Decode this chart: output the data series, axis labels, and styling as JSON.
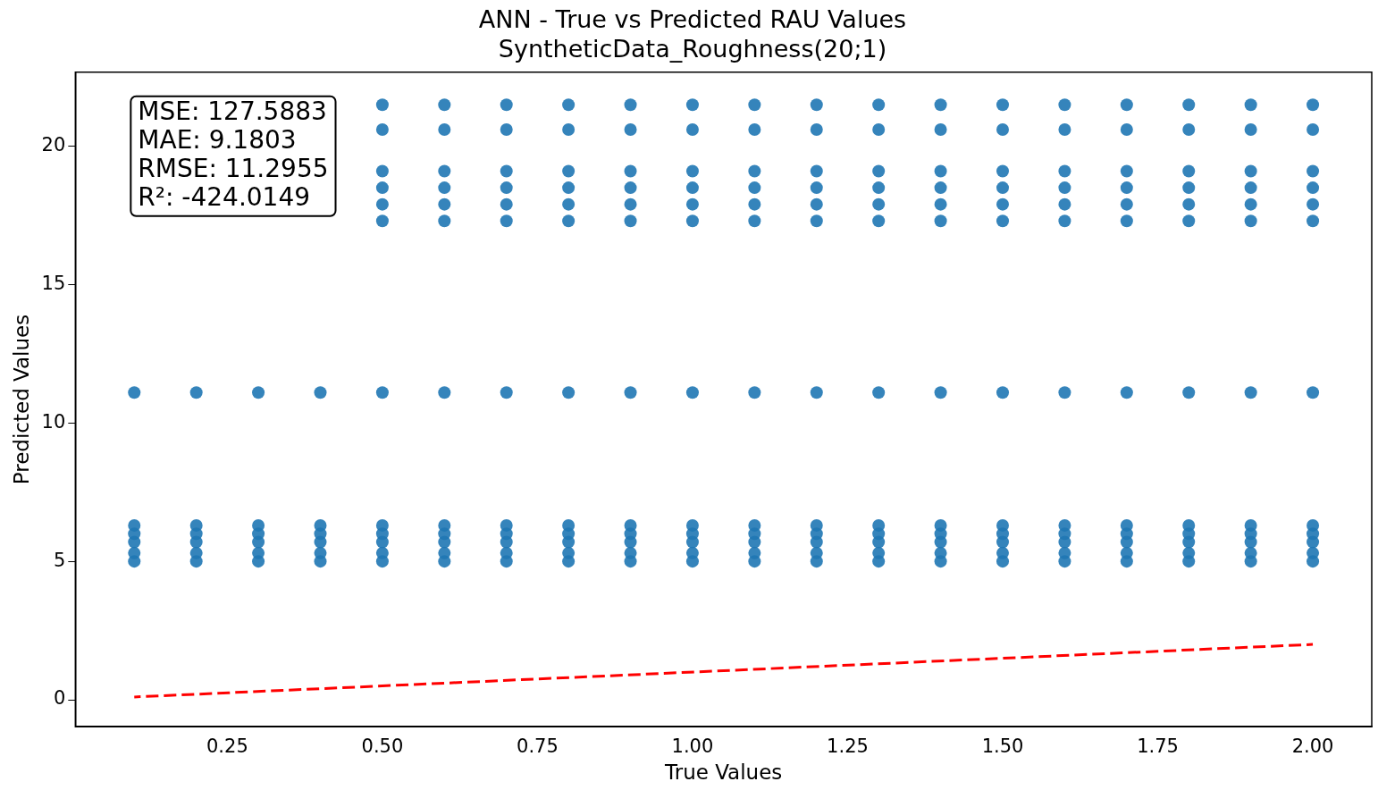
{
  "chart_data": {
    "type": "scatter",
    "title": "ANN - True vs Predicted RAU Values",
    "subtitle": "SyntheticData_Roughness(20;1)",
    "xlabel": "True Values",
    "ylabel": "Predicted Values",
    "annotations": [
      "MSE: 127.5883",
      "MAE: 9.1803",
      "RMSE: 11.2955",
      "R²: -424.0149"
    ],
    "x": [
      0.1,
      0.2,
      0.3,
      0.4,
      0.5,
      0.6,
      0.7,
      0.8,
      0.9,
      1.0,
      1.1,
      1.2,
      1.3,
      1.4,
      1.5,
      1.6,
      1.7,
      1.8,
      1.9,
      2.0
    ],
    "xlim": [
      0.005,
      2.095
    ],
    "xticks": [
      {
        "value": 0.25,
        "label": "0.25"
      },
      {
        "value": 0.5,
        "label": "0.50"
      },
      {
        "value": 0.75,
        "label": "0.75"
      },
      {
        "value": 1,
        "label": "1.00"
      },
      {
        "value": 1.25,
        "label": "1.25"
      },
      {
        "value": 1.5,
        "label": "1.50"
      },
      {
        "value": 1.75,
        "label": "1.75"
      },
      {
        "value": 2,
        "label": "2.00"
      }
    ],
    "ylim": [
      -0.975,
      22.675
    ],
    "yticks": [
      0,
      5,
      10,
      15,
      20
    ],
    "grid": false,
    "legend": false,
    "marker": "circle",
    "series": [
      {
        "color": "#1f77b4",
        "values": [
          null,
          null,
          null,
          null,
          21.5,
          21.5,
          21.5,
          21.5,
          21.5,
          21.5,
          21.5,
          21.5,
          21.5,
          21.5,
          21.5,
          21.5,
          21.5,
          21.5,
          21.5,
          21.5
        ]
      },
      {
        "color": "#1f77b4",
        "values": [
          null,
          null,
          null,
          null,
          20.6,
          20.6,
          20.6,
          20.6,
          20.6,
          20.6,
          20.6,
          20.6,
          20.6,
          20.6,
          20.6,
          20.6,
          20.6,
          20.6,
          20.6,
          20.6
        ]
      },
      {
        "color": "#1f77b4",
        "values": [
          null,
          null,
          null,
          null,
          19.1,
          19.1,
          19.1,
          19.1,
          19.1,
          19.1,
          19.1,
          19.1,
          19.1,
          19.1,
          19.1,
          19.1,
          19.1,
          19.1,
          19.1,
          19.1
        ]
      },
      {
        "color": "#1f77b4",
        "values": [
          null,
          null,
          null,
          null,
          18.5,
          18.5,
          18.5,
          18.5,
          18.5,
          18.5,
          18.5,
          18.5,
          18.5,
          18.5,
          18.5,
          18.5,
          18.5,
          18.5,
          18.5,
          18.5
        ]
      },
      {
        "color": "#1f77b4",
        "values": [
          null,
          null,
          null,
          null,
          17.9,
          17.9,
          17.9,
          17.9,
          17.9,
          17.9,
          17.9,
          17.9,
          17.9,
          17.9,
          17.9,
          17.9,
          17.9,
          17.9,
          17.9,
          17.9
        ]
      },
      {
        "color": "#1f77b4",
        "values": [
          null,
          null,
          null,
          null,
          17.3,
          17.3,
          17.3,
          17.3,
          17.3,
          17.3,
          17.3,
          17.3,
          17.3,
          17.3,
          17.3,
          17.3,
          17.3,
          17.3,
          17.3,
          17.3
        ]
      },
      {
        "color": "#1f77b4",
        "values": [
          11.1,
          11.1,
          11.1,
          11.1,
          11.1,
          11.1,
          11.1,
          11.1,
          11.1,
          11.1,
          11.1,
          11.1,
          11.1,
          11.1,
          11.1,
          11.1,
          11.1,
          11.1,
          11.1,
          11.1
        ]
      },
      {
        "color": "#1f77b4",
        "values": [
          6.3,
          6.3,
          6.3,
          6.3,
          6.3,
          6.3,
          6.3,
          6.3,
          6.3,
          6.3,
          6.3,
          6.3,
          6.3,
          6.3,
          6.3,
          6.3,
          6.3,
          6.3,
          6.3,
          6.3
        ]
      },
      {
        "color": "#1f77b4",
        "values": [
          6.0,
          6.0,
          6.0,
          6.0,
          6.0,
          6.0,
          6.0,
          6.0,
          6.0,
          6.0,
          6.0,
          6.0,
          6.0,
          6.0,
          6.0,
          6.0,
          6.0,
          6.0,
          6.0,
          6.0
        ]
      },
      {
        "color": "#1f77b4",
        "values": [
          5.7,
          5.7,
          5.7,
          5.7,
          5.7,
          5.7,
          5.7,
          5.7,
          5.7,
          5.7,
          5.7,
          5.7,
          5.7,
          5.7,
          5.7,
          5.7,
          5.7,
          5.7,
          5.7,
          5.7
        ]
      },
      {
        "color": "#1f77b4",
        "values": [
          5.3,
          5.3,
          5.3,
          5.3,
          5.3,
          5.3,
          5.3,
          5.3,
          5.3,
          5.3,
          5.3,
          5.3,
          5.3,
          5.3,
          5.3,
          5.3,
          5.3,
          5.3,
          5.3,
          5.3
        ]
      },
      {
        "color": "#1f77b4",
        "values": [
          5.0,
          5.0,
          5.0,
          5.0,
          5.0,
          5.0,
          5.0,
          5.0,
          5.0,
          5.0,
          5.0,
          5.0,
          5.0,
          5.0,
          5.0,
          5.0,
          5.0,
          5.0,
          5.0,
          5.0
        ]
      },
      {
        "type": "line",
        "color": "#ff0000",
        "line_style": "dashed",
        "marker": "none",
        "x": [
          0.1,
          2.0
        ],
        "values": [
          0.1,
          2.0
        ]
      }
    ]
  }
}
